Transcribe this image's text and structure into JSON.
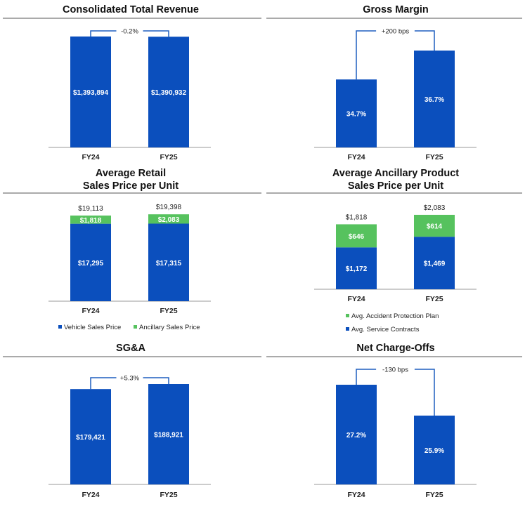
{
  "colors": {
    "primary": "#0b4fbd",
    "secondary": "#56c25e",
    "connector": "#1f5fbf",
    "axis": "#9a9a9a",
    "rule": "#555555"
  },
  "chart_data": [
    {
      "type": "bar",
      "title_lines": [
        "Consolidated Total Revenue"
      ],
      "categories": [
        "FY24",
        "FY25"
      ],
      "values": [
        1393894,
        1390932
      ],
      "value_labels": [
        "$1,393,894",
        "$1,390,932"
      ],
      "ylim": [
        0,
        1500000
      ],
      "change_label": "-0.2%",
      "legend": []
    },
    {
      "type": "bar",
      "title_lines": [
        "Gross Margin"
      ],
      "categories": [
        "FY24",
        "FY25"
      ],
      "values": [
        34.7,
        36.7
      ],
      "value_labels": [
        "34.7%",
        "36.7%"
      ],
      "ylim": [
        30,
        38
      ],
      "change_label": "+200 bps",
      "legend": []
    },
    {
      "type": "stacked_bar",
      "title_lines": [
        "Average Retail",
        "Sales Price per Unit"
      ],
      "categories": [
        "FY24",
        "FY25"
      ],
      "series": [
        {
          "name": "Vehicle Sales Price",
          "values": [
            17295,
            17315
          ],
          "labels": [
            "$17,295",
            "$17,315"
          ]
        },
        {
          "name": "Ancillary Sales Price",
          "values": [
            1818,
            2083
          ],
          "labels": [
            "$1,818",
            "$2,083"
          ]
        }
      ],
      "total_labels": [
        "$19,113",
        "$19,398"
      ],
      "ylim": [
        0,
        21000
      ],
      "legend_position": "bottom"
    },
    {
      "type": "stacked_bar",
      "title_lines": [
        "Average Ancillary Product",
        "Sales Price per Unit"
      ],
      "categories": [
        "FY24",
        "FY25"
      ],
      "series": [
        {
          "name": "Avg. Service Contracts",
          "values": [
            1172,
            1469
          ],
          "labels": [
            "$1,172",
            "$1,469"
          ]
        },
        {
          "name": "Avg. Accident Protection Plan",
          "values": [
            646,
            614
          ],
          "labels": [
            "$646",
            "$614"
          ]
        }
      ],
      "total_labels": [
        "$1,818",
        "$2,083"
      ],
      "ylim": [
        0,
        2200
      ],
      "legend_position": "bottom"
    },
    {
      "type": "bar",
      "title_lines": [
        "SG&A"
      ],
      "categories": [
        "FY24",
        "FY25"
      ],
      "values": [
        179421,
        188921
      ],
      "value_labels": [
        "$179,421",
        "$188,921"
      ],
      "ylim": [
        0,
        210000
      ],
      "change_label": "+5.3%",
      "legend": []
    },
    {
      "type": "bar",
      "title_lines": [
        "Net Charge-Offs"
      ],
      "categories": [
        "FY24",
        "FY25"
      ],
      "values": [
        27.2,
        25.9
      ],
      "value_labels": [
        "27.2%",
        "25.9%"
      ],
      "ylim": [
        23,
        28.5
      ],
      "change_label": "-130 bps",
      "legend": []
    }
  ]
}
